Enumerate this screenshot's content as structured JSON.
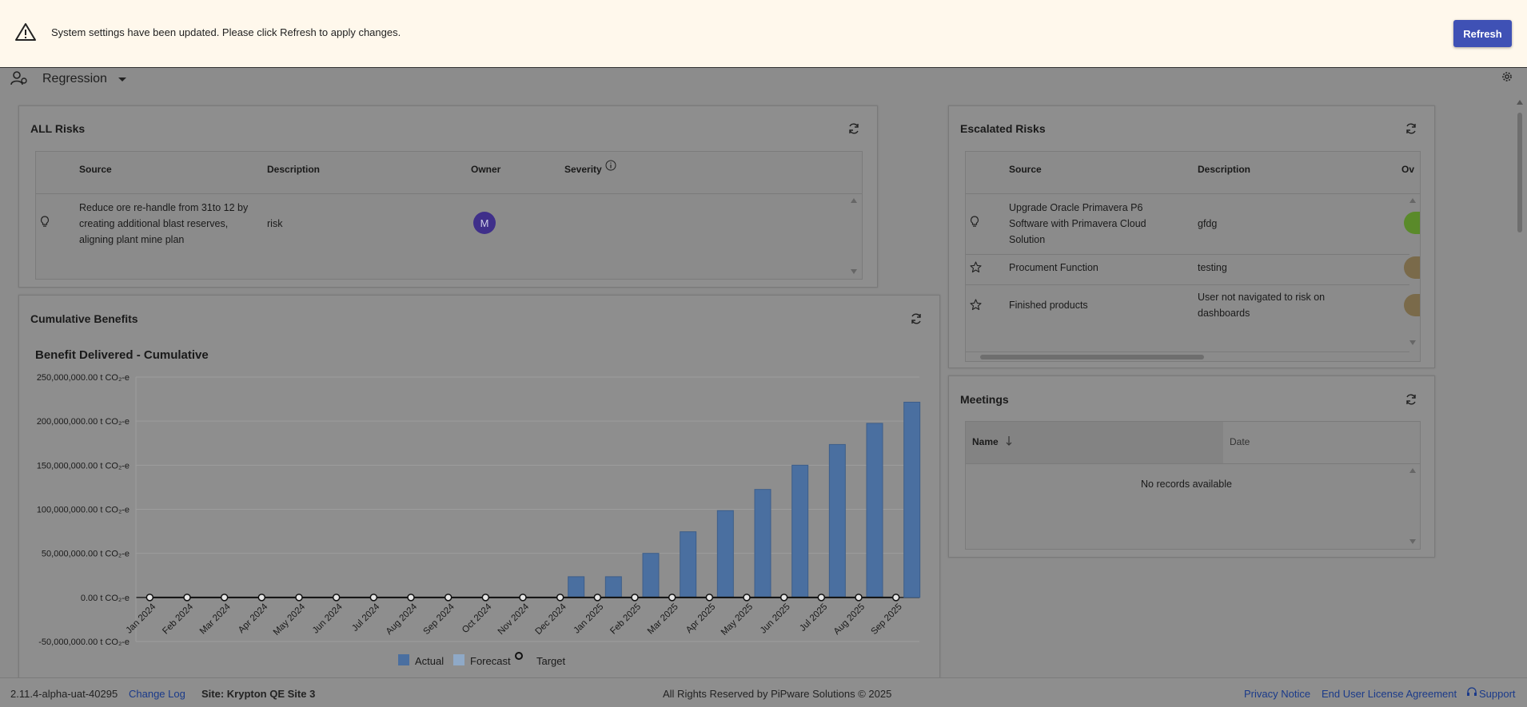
{
  "banner": {
    "message": "System settings have been updated. Please click Refresh to apply changes.",
    "refresh_label": "Refresh"
  },
  "topbar": {
    "view_name": "Regression"
  },
  "all_risks": {
    "title": "ALL Risks",
    "columns": [
      "Source",
      "Description",
      "Owner",
      "Severity"
    ],
    "rows": [
      {
        "icon": "lightbulb-icon",
        "source_lines": [
          "Reduce ore re-handle from 31to 12 by",
          "creating additional blast reserves,",
          "aligning plant mine plan"
        ],
        "description": "risk",
        "owner_initial": "M"
      }
    ]
  },
  "escalated_risks": {
    "title": "Escalated Risks",
    "columns": [
      "Source",
      "Description",
      "Ov"
    ],
    "rows": [
      {
        "icon": "lightbulb-icon",
        "source_lines": [
          "Upgrade Oracle Primavera P6",
          "Software with Primavera Cloud",
          "Solution"
        ],
        "description_lines": [
          "gfdg"
        ],
        "owner_color": "#5a8a2a"
      },
      {
        "icon": "star-icon",
        "source_lines": [
          "Procument Function"
        ],
        "description_lines": [
          "testing"
        ],
        "owner_color": "#7a6a4a"
      },
      {
        "icon": "star-icon",
        "source_lines": [
          "Finished products"
        ],
        "description_lines": [
          "User not navigated to risk on",
          "dashboards"
        ],
        "owner_color": "#7a6a4a"
      }
    ]
  },
  "meetings": {
    "title": "Meetings",
    "columns": [
      "Name",
      "Date"
    ],
    "empty_text": "No records available"
  },
  "cumulative": {
    "title": "Cumulative Benefits"
  },
  "chart_data": {
    "type": "bar",
    "title": "Benefit Delivered - Cumulative",
    "categories": [
      "Jan 2024",
      "Feb 2024",
      "Mar 2024",
      "Apr 2024",
      "May 2024",
      "Jun 2024",
      "Jul 2024",
      "Aug 2024",
      "Sep 2024",
      "Oct 2024",
      "Nov 2024",
      "Dec 2024",
      "Jan 2025",
      "Feb 2025",
      "Mar 2025",
      "Apr 2025",
      "May 2025",
      "Jun 2025",
      "Jul 2025",
      "Aug 2025",
      "Sep 2025"
    ],
    "series": [
      {
        "name": "Actual",
        "type": "bar",
        "color": "#4a6fa0",
        "values": [
          0,
          0,
          0,
          0,
          0,
          0,
          0,
          0,
          0,
          0,
          0,
          23500000,
          23500000,
          50000000,
          74500000,
          98500000,
          122500000,
          150000000,
          173500000,
          197500000,
          221500000
        ]
      },
      {
        "name": "Forecast",
        "type": "bar",
        "color": "#8fa9c7",
        "values": [
          0,
          0,
          0,
          0,
          0,
          0,
          0,
          0,
          0,
          0,
          0,
          0,
          0,
          0,
          0,
          0,
          0,
          0,
          0,
          0,
          0
        ]
      },
      {
        "name": "Target",
        "type": "line",
        "color": "#111111",
        "values": [
          0,
          0,
          0,
          0,
          0,
          0,
          0,
          0,
          0,
          0,
          0,
          0,
          0,
          0,
          0,
          0,
          0,
          0,
          0,
          0,
          0
        ]
      }
    ],
    "yticks": [
      250000000,
      200000000,
      150000000,
      100000000,
      50000000,
      0,
      -50000000
    ],
    "ytick_labels": [
      "250,000,000.00 t CO₂-e",
      "200,000,000.00 t CO₂-e",
      "150,000,000.00 t CO₂-e",
      "100,000,000.00 t CO₂-e",
      "50,000,000.00 t CO₂-e",
      "0.00 t CO₂-e",
      "-50,000,000.00 t CO₂-e"
    ],
    "ylim": [
      -50000000,
      250000000
    ],
    "grid": true,
    "legend": "bottom"
  },
  "footer": {
    "version": "2.11.4-alpha-uat-40295",
    "changelog": "Change Log",
    "site": "Site: Krypton QE Site 3",
    "copyright": "All Rights Reserved by PiPware Solutions © 2025",
    "privacy": "Privacy Notice",
    "eula": "End User License Agreement",
    "support": "Support"
  }
}
